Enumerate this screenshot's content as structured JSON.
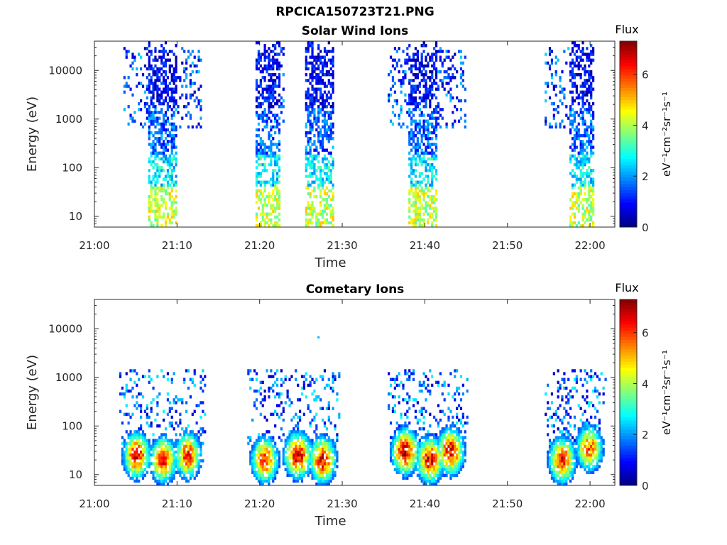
{
  "title": "RPCICA150723T21.PNG",
  "colorscale": [
    "#00007f",
    "#0000ff",
    "#007fff",
    "#00ffff",
    "#7fff7f",
    "#ffff00",
    "#ff7f00",
    "#ff0000",
    "#7f0000"
  ],
  "chart_data": [
    {
      "type": "heatmap",
      "title": "Solar Wind Ions",
      "xlabel": "Time",
      "ylabel": "Energy (eV)",
      "xticks": [
        "21:00",
        "21:10",
        "21:20",
        "21:30",
        "21:40",
        "21:50",
        "22:00"
      ],
      "xlim_minutes": [
        0,
        63
      ],
      "yscale": "log",
      "ylim": [
        6,
        40000
      ],
      "yticks": [
        10,
        100,
        1000,
        10000
      ],
      "ytick_labels": [
        "10",
        "100",
        "1000",
        "10000"
      ],
      "colorbar": {
        "label": "Flux",
        "unit": "eV⁻¹cm⁻²sr⁻¹s⁻¹",
        "range": [
          0,
          7.3
        ],
        "ticks": [
          0,
          2,
          4,
          6
        ],
        "tick_labels": [
          "0",
          "2",
          "4",
          "6"
        ]
      },
      "bursts": [
        {
          "start_min": 3.5,
          "end_min": 13.0,
          "core_start_min": 6.5,
          "core_end_min": 10.0,
          "emin": 6,
          "emax": 40000
        },
        {
          "start_min": 19.5,
          "end_min": 23.0,
          "core_start_min": 19.5,
          "core_end_min": 22.5,
          "emin": 6,
          "emax": 40000
        },
        {
          "start_min": 25.5,
          "end_min": 29.0,
          "core_start_min": 25.5,
          "core_end_min": 29.0,
          "emin": 6,
          "emax": 40000
        },
        {
          "start_min": 35.5,
          "end_min": 45.0,
          "core_start_min": 38.0,
          "core_end_min": 41.5,
          "emin": 6,
          "emax": 40000
        },
        {
          "start_min": 54.5,
          "end_min": 60.5,
          "core_start_min": 57.5,
          "core_end_min": 60.5,
          "emin": 6,
          "emax": 40000
        }
      ]
    },
    {
      "type": "heatmap",
      "title": "Cometary Ions",
      "xlabel": "Time",
      "ylabel": "Energy (eV)",
      "xticks": [
        "21:00",
        "21:10",
        "21:20",
        "21:30",
        "21:40",
        "21:50",
        "22:00"
      ],
      "xlim_minutes": [
        0,
        63
      ],
      "yscale": "log",
      "ylim": [
        6,
        40000
      ],
      "yticks": [
        10,
        100,
        1000,
        10000
      ],
      "ytick_labels": [
        "10",
        "100",
        "1000",
        "10000"
      ],
      "colorbar": {
        "label": "Flux",
        "unit": "eV⁻¹cm⁻²sr⁻¹s⁻¹",
        "range": [
          0,
          7.3
        ],
        "ticks": [
          0,
          2,
          4,
          6
        ],
        "tick_labels": [
          "0",
          "2",
          "4",
          "6"
        ]
      },
      "hotspots": [
        {
          "time_min": 5.0,
          "energy_ev": 25,
          "peak_flux": 6.8
        },
        {
          "time_min": 8.2,
          "energy_ev": 20,
          "peak_flux": 6.5
        },
        {
          "time_min": 11.2,
          "energy_ev": 25,
          "peak_flux": 6.5
        },
        {
          "time_min": 20.5,
          "energy_ev": 20,
          "peak_flux": 6.5
        },
        {
          "time_min": 24.5,
          "energy_ev": 25,
          "peak_flux": 7.0
        },
        {
          "time_min": 27.5,
          "energy_ev": 20,
          "peak_flux": 6.8
        },
        {
          "time_min": 37.5,
          "energy_ev": 30,
          "peak_flux": 7.2
        },
        {
          "time_min": 40.5,
          "energy_ev": 20,
          "peak_flux": 6.8
        },
        {
          "time_min": 43.0,
          "energy_ev": 30,
          "peak_flux": 7.0
        },
        {
          "time_min": 56.5,
          "energy_ev": 20,
          "peak_flux": 6.5
        },
        {
          "time_min": 59.8,
          "energy_ev": 35,
          "peak_flux": 6.0
        }
      ],
      "sparse_upper_energy_ev": 1500
    }
  ]
}
